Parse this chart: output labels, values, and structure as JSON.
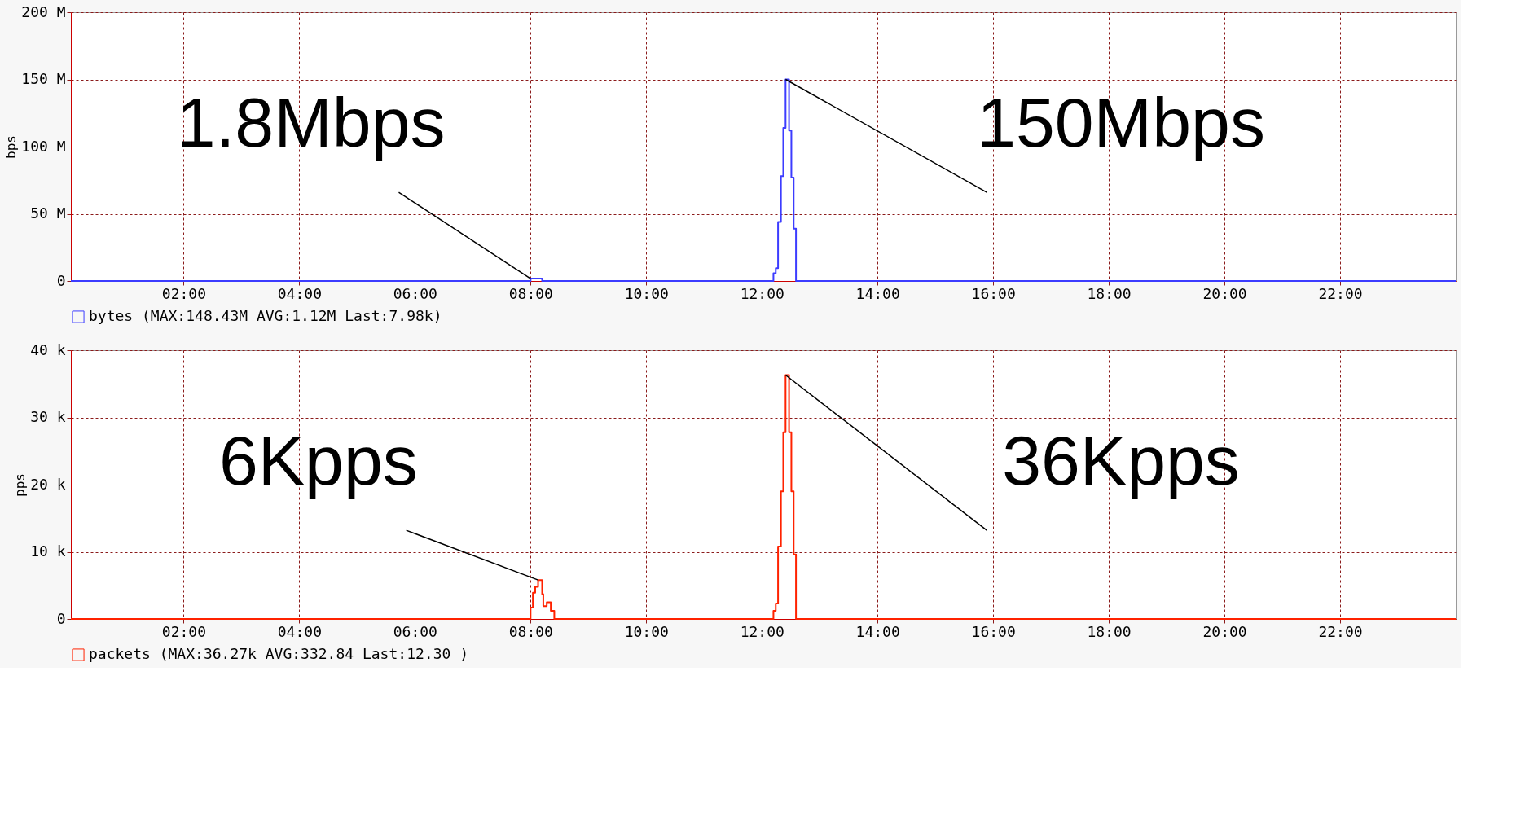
{
  "chart_data": [
    {
      "type": "step",
      "ylabel": "bps",
      "legend": "bottom",
      "grid": true,
      "xlim": [
        0.05,
        24
      ],
      "xticks": [
        {
          "value": 2,
          "label": "02:00"
        },
        {
          "value": 4,
          "label": "04:00"
        },
        {
          "value": 6,
          "label": "06:00"
        },
        {
          "value": 8,
          "label": "08:00"
        },
        {
          "value": 10,
          "label": "10:00"
        },
        {
          "value": 12,
          "label": "12:00"
        },
        {
          "value": 14,
          "label": "14:00"
        },
        {
          "value": 16,
          "label": "16:00"
        },
        {
          "value": 18,
          "label": "18:00"
        },
        {
          "value": 20,
          "label": "20:00"
        },
        {
          "value": 22,
          "label": "22:00"
        }
      ],
      "ylim": [
        0,
        200000000
      ],
      "yticks": [
        0,
        {
          "value": 50000000,
          "label": "50 M"
        },
        {
          "value": 100000000,
          "label": "100 M"
        },
        {
          "value": 150000000,
          "label": "150 M"
        },
        {
          "value": 200000000,
          "label": "200 M"
        }
      ],
      "series": [
        {
          "name": "bytes  (MAX:148.43M  AVG:1.12M  Last:7.98k)",
          "color": "#3c3cff",
          "x": [
            0.05,
            8.0,
            8.2,
            12.2,
            12.24,
            12.28,
            12.33,
            12.37,
            12.41,
            12.47,
            12.51,
            12.55,
            12.59,
            24
          ],
          "values": [
            0,
            1800000,
            0,
            5800000,
            9600000,
            44000000,
            78000000,
            114000000,
            150000000,
            112000000,
            77000000,
            39000000,
            0,
            0
          ]
        }
      ],
      "annotations": [
        {
          "text": "1.8Mbps",
          "x": 8.0,
          "y": 1800000
        },
        {
          "text": "150Mbps",
          "x": 12.41,
          "y": 150000000
        }
      ]
    },
    {
      "type": "step",
      "ylabel": "pps",
      "legend": "bottom",
      "grid": true,
      "xlim": [
        0.05,
        24
      ],
      "xticks": [
        {
          "value": 2,
          "label": "02:00"
        },
        {
          "value": 4,
          "label": "04:00"
        },
        {
          "value": 6,
          "label": "06:00"
        },
        {
          "value": 8,
          "label": "08:00"
        },
        {
          "value": 10,
          "label": "10:00"
        },
        {
          "value": 12,
          "label": "12:00"
        },
        {
          "value": 14,
          "label": "14:00"
        },
        {
          "value": 16,
          "label": "16:00"
        },
        {
          "value": 18,
          "label": "18:00"
        },
        {
          "value": 20,
          "label": "20:00"
        },
        {
          "value": 22,
          "label": "22:00"
        }
      ],
      "ylim": [
        0,
        40000
      ],
      "yticks": [
        0,
        {
          "value": 10000,
          "label": "10 k"
        },
        {
          "value": 20000,
          "label": "20 k"
        },
        {
          "value": 30000,
          "label": "30 k"
        },
        {
          "value": 40000,
          "label": "40 k"
        }
      ],
      "series": [
        {
          "name": "packets  (MAX:36.27k  AVG:332.84  Last:12.30 )",
          "color": "#ff2200",
          "x": [
            0.05,
            8.0,
            8.04,
            8.08,
            8.13,
            8.2,
            8.22,
            8.28,
            8.35,
            8.41,
            12.2,
            12.24,
            12.28,
            12.33,
            12.37,
            12.41,
            12.47,
            12.51,
            12.55,
            12.59,
            24
          ],
          "values": [
            0,
            1700,
            3900,
            4800,
            5800,
            3700,
            1900,
            2500,
            1200,
            0,
            1200,
            2300,
            10800,
            19000,
            27800,
            36300,
            27800,
            19000,
            9600,
            0,
            0
          ]
        }
      ],
      "annotations": [
        {
          "text": "6Kpps",
          "x": 8.13,
          "y": 5800
        },
        {
          "text": "36Kpps",
          "x": 12.41,
          "y": 36300
        }
      ]
    }
  ]
}
